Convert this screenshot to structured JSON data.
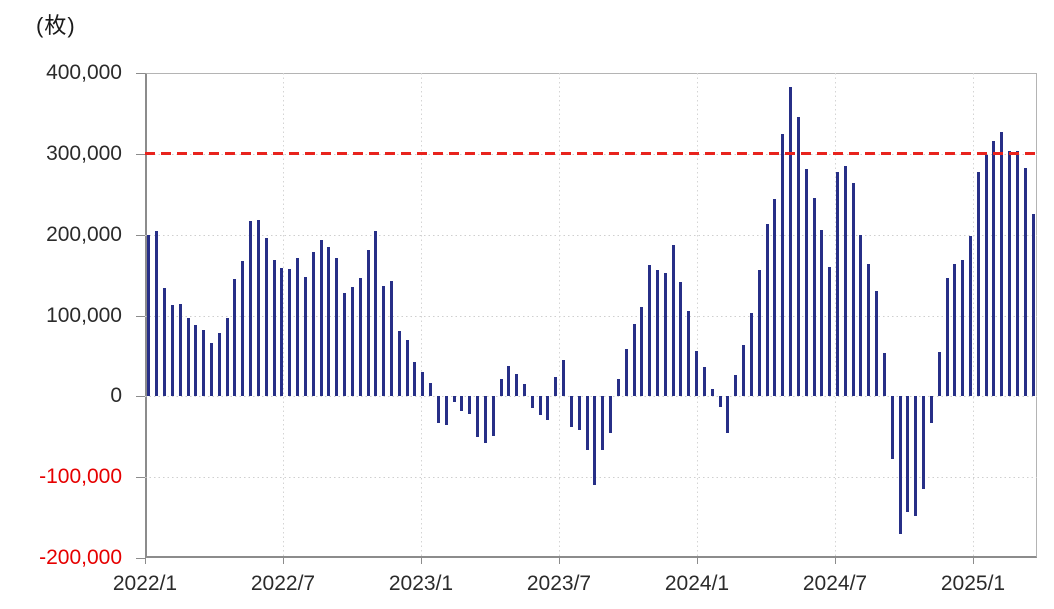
{
  "unit_label": "(枚)",
  "chart_data": {
    "type": "bar",
    "title": "",
    "unit": "枚",
    "bar_color": "#272f87",
    "background_color": "#ffffff",
    "grid": true,
    "legend": false,
    "y_axis": {
      "min": -200000,
      "max": 400000,
      "tick_interval": 100000,
      "ticks": [
        {
          "value": 400000,
          "label": "400,000",
          "negative": false
        },
        {
          "value": 300000,
          "label": "300,000",
          "negative": false
        },
        {
          "value": 200000,
          "label": "200,000",
          "negative": false
        },
        {
          "value": 100000,
          "label": "100,000",
          "negative": false
        },
        {
          "value": 0,
          "label": "0",
          "negative": false
        },
        {
          "value": -100000,
          "label": "-100,000",
          "negative": true
        },
        {
          "value": -200000,
          "label": "-200,000",
          "negative": true
        }
      ],
      "label_color": "#2b2b2b",
      "negative_label_color": "#e60000"
    },
    "x_axis": {
      "tick_labels": [
        "2022/1",
        "2022/7",
        "2023/1",
        "2023/7",
        "2024/1",
        "2024/7",
        "2025/1"
      ],
      "label_color": "#2b2b2b"
    },
    "reference_line": {
      "value": 300000,
      "color": "#e8231d",
      "style": "dashed"
    },
    "series": [
      {
        "month": "2022/1",
        "values": [
          199000,
          205000,
          134000
        ]
      },
      {
        "month": "2022/2",
        "values": [
          113000,
          114000,
          97000
        ]
      },
      {
        "month": "2022/3",
        "values": [
          88000,
          82000,
          66000
        ]
      },
      {
        "month": "2022/4",
        "values": [
          78000,
          97000,
          145000
        ]
      },
      {
        "month": "2022/5",
        "values": [
          168000,
          217000,
          218000
        ]
      },
      {
        "month": "2022/6",
        "values": [
          196000,
          169000,
          159000
        ]
      },
      {
        "month": "2022/7",
        "values": [
          158000,
          171000,
          148000
        ]
      },
      {
        "month": "2022/8",
        "values": [
          178000,
          193000,
          185000
        ]
      },
      {
        "month": "2022/9",
        "values": [
          171000,
          128000,
          135000
        ]
      },
      {
        "month": "2022/10",
        "values": [
          146000,
          181000,
          204000
        ]
      },
      {
        "month": "2022/11",
        "values": [
          137000,
          143000,
          81000
        ]
      },
      {
        "month": "2022/12",
        "values": [
          70000,
          43000,
          30000
        ]
      },
      {
        "month": "2023/1",
        "values": [
          17000,
          -33000,
          -35000
        ]
      },
      {
        "month": "2023/2",
        "values": [
          -7000,
          -18000,
          -22000
        ]
      },
      {
        "month": "2023/3",
        "values": [
          -50000,
          -58000,
          -49000
        ]
      },
      {
        "month": "2023/4",
        "values": [
          21000,
          38000,
          28000
        ]
      },
      {
        "month": "2023/5",
        "values": [
          15000,
          -15000,
          -23000
        ]
      },
      {
        "month": "2023/6",
        "values": [
          -29000,
          24000,
          45000
        ]
      },
      {
        "month": "2023/7",
        "values": [
          -38000,
          -42000,
          -66000
        ]
      },
      {
        "month": "2023/8",
        "values": [
          -110000,
          -66000,
          -45000
        ]
      },
      {
        "month": "2023/9",
        "values": [
          21000,
          59000,
          90000
        ]
      },
      {
        "month": "2023/10",
        "values": [
          111000,
          162000,
          156000
        ]
      },
      {
        "month": "2023/11",
        "values": [
          152000,
          187000,
          142000
        ]
      },
      {
        "month": "2023/12",
        "values": [
          106000,
          56000,
          36000
        ]
      },
      {
        "month": "2024/1",
        "values": [
          9000,
          -13000,
          -45000
        ]
      },
      {
        "month": "2024/2",
        "values": [
          26000,
          64000,
          103000
        ]
      },
      {
        "month": "2024/3",
        "values": [
          156000,
          213000,
          244000
        ]
      },
      {
        "month": "2024/4",
        "values": [
          324000,
          383000,
          346000
        ]
      },
      {
        "month": "2024/5",
        "values": [
          281000,
          245000,
          206000
        ]
      },
      {
        "month": "2024/6",
        "values": [
          160000,
          278000,
          285000
        ]
      },
      {
        "month": "2024/7",
        "values": [
          264000,
          200000,
          164000
        ]
      },
      {
        "month": "2024/8",
        "values": [
          130000,
          53000,
          -78000
        ]
      },
      {
        "month": "2024/9",
        "values": [
          -170000,
          -143000,
          -148000
        ]
      },
      {
        "month": "2024/10",
        "values": [
          -115000,
          -33000,
          55000
        ]
      },
      {
        "month": "2024/11",
        "values": [
          147000,
          164000,
          169000
        ]
      },
      {
        "month": "2024/12",
        "values": [
          198000,
          278000,
          298000
        ]
      },
      {
        "month": "2025/1",
        "values": [
          316000,
          327000,
          304000
        ]
      },
      {
        "month": "2025/2",
        "values": [
          303000,
          282000,
          226000
        ]
      }
    ]
  }
}
